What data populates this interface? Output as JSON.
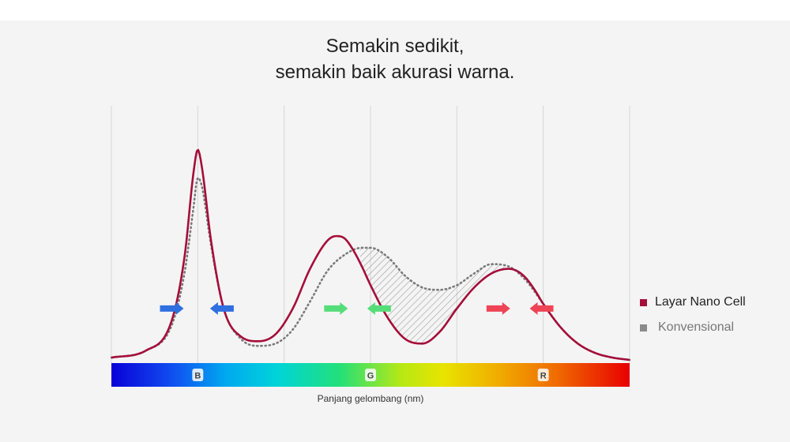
{
  "title_lines": [
    "Semakin sedikit,",
    "semakin baik akurasi warna."
  ],
  "legend": [
    {
      "label": "Layar Nano Cell",
      "color": "#a50e3a"
    },
    {
      "label": "Konvensional",
      "color": "#8a8a8a"
    }
  ],
  "colors": {
    "nano_cell_line": "#a50e3a",
    "conventional_line": "#7a7a7a",
    "hatch": "#9a9a9a",
    "arrow_blue": "#2f6fe0",
    "arrow_green": "#55dd7a",
    "arrow_red": "#ee4455",
    "background": "#f4f4f4",
    "grid": "#d6d6d6"
  },
  "chart_data": {
    "type": "line",
    "xlabel": "Panjang gelombang (nm)",
    "ylabel": "",
    "xlim": [
      0,
      6
    ],
    "ylim": [
      0,
      1
    ],
    "x_gridlines": [
      0,
      1,
      2,
      3,
      4,
      5,
      6
    ],
    "x_tick_labels": [
      {
        "x": 1,
        "label": "B"
      },
      {
        "x": 3,
        "label": "G"
      },
      {
        "x": 5,
        "label": "R"
      }
    ],
    "spectrum_bar": true,
    "series": [
      {
        "name": "Layar Nano Cell",
        "style": "solid",
        "x": [
          0.0,
          0.4,
          0.7,
          0.85,
          0.95,
          1.0,
          1.05,
          1.15,
          1.3,
          1.5,
          1.7,
          1.9,
          2.1,
          2.3,
          2.5,
          2.6,
          2.7,
          2.8,
          2.9,
          3.0,
          3.2,
          3.4,
          3.6,
          3.8,
          4.0,
          4.2,
          4.4,
          4.6,
          4.7,
          4.8,
          4.9,
          5.0,
          5.2,
          5.4,
          5.6,
          5.8,
          6.0
        ],
        "y": [
          0.01,
          0.04,
          0.17,
          0.45,
          0.8,
          0.9,
          0.82,
          0.52,
          0.22,
          0.1,
          0.08,
          0.11,
          0.22,
          0.39,
          0.51,
          0.53,
          0.52,
          0.47,
          0.4,
          0.32,
          0.18,
          0.09,
          0.07,
          0.12,
          0.22,
          0.31,
          0.37,
          0.39,
          0.38,
          0.35,
          0.3,
          0.24,
          0.14,
          0.07,
          0.03,
          0.01,
          0.0
        ]
      },
      {
        "name": "Konvensional",
        "style": "dotted",
        "x": [
          0.0,
          0.4,
          0.7,
          0.85,
          0.95,
          1.0,
          1.05,
          1.15,
          1.3,
          1.5,
          1.7,
          1.9,
          2.1,
          2.3,
          2.5,
          2.7,
          2.9,
          3.0,
          3.2,
          3.4,
          3.6,
          3.8,
          4.0,
          4.2,
          4.4,
          4.6,
          4.8,
          5.0,
          5.2,
          5.4,
          5.6,
          5.8,
          6.0
        ],
        "y": [
          0.01,
          0.04,
          0.15,
          0.38,
          0.65,
          0.78,
          0.74,
          0.5,
          0.22,
          0.09,
          0.06,
          0.07,
          0.13,
          0.25,
          0.38,
          0.45,
          0.48,
          0.48,
          0.44,
          0.36,
          0.31,
          0.3,
          0.32,
          0.37,
          0.41,
          0.4,
          0.34,
          0.24,
          0.14,
          0.07,
          0.03,
          0.01,
          0.0
        ]
      }
    ],
    "arrows": [
      {
        "x": 0.7,
        "direction": "right",
        "color": "blue"
      },
      {
        "x": 1.28,
        "direction": "left",
        "color": "blue"
      },
      {
        "x": 2.6,
        "direction": "right",
        "color": "green"
      },
      {
        "x": 3.1,
        "direction": "left",
        "color": "green"
      },
      {
        "x": 4.48,
        "direction": "right",
        "color": "red"
      },
      {
        "x": 4.98,
        "direction": "left",
        "color": "red"
      }
    ],
    "arrow_level": 0.22,
    "hatched_region": {
      "x_start": 2.88,
      "x_end": 4.55
    }
  }
}
